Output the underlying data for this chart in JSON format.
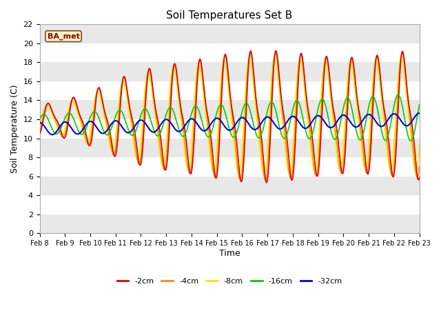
{
  "title": "Soil Temperatures Set B",
  "xlabel": "Time",
  "ylabel": "Soil Temperature (C)",
  "ylim": [
    0,
    22
  ],
  "xlim": [
    0,
    15
  ],
  "bg_color": "#ffffff",
  "plot_bg": "#ffffff",
  "legend_label": "BA_met",
  "series": {
    "neg2cm": {
      "label": "-2cm",
      "color": "#dd0000",
      "lw": 1.2
    },
    "neg4cm": {
      "label": "-4cm",
      "color": "#ff8800",
      "lw": 1.2
    },
    "neg8cm": {
      "label": "-8cm",
      "color": "#eeee00",
      "lw": 1.2
    },
    "neg16cm": {
      "label": "-16cm",
      "color": "#00cc00",
      "lw": 1.2
    },
    "neg32cm": {
      "label": "-32cm",
      "color": "#0000dd",
      "lw": 1.5
    }
  },
  "x_tick_labels": [
    "Feb 8",
    "Feb 9",
    "Feb 10",
    "Feb 11",
    "Feb 12",
    "Feb 13",
    "Feb 14",
    "Feb 15",
    "Feb 16",
    "Feb 17",
    "Feb 18",
    "Feb 19",
    "Feb 20",
    "Feb 21",
    "Feb 22",
    "Feb 23"
  ],
  "x_ticks": [
    0,
    1,
    2,
    3,
    4,
    5,
    6,
    7,
    8,
    9,
    10,
    11,
    12,
    13,
    14,
    15
  ],
  "y_ticks": [
    0,
    2,
    4,
    6,
    8,
    10,
    12,
    14,
    16,
    18,
    20,
    22
  ],
  "figsize": [
    6.4,
    4.8
  ],
  "dpi": 100
}
